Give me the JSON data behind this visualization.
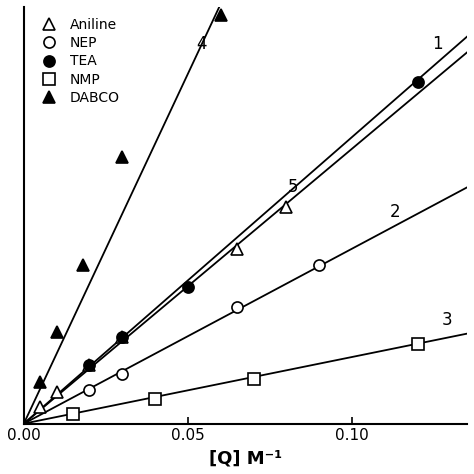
{
  "xlabel": "[Q] M⁻¹",
  "xlim": [
    0,
    0.135
  ],
  "ylim": [
    1.0,
    3.5
  ],
  "xticks": [
    0.0,
    0.05,
    0.1
  ],
  "xticklabels": [
    "0.00",
    "0.05",
    "0.10"
  ],
  "series": [
    {
      "label": "Aniline",
      "marker": "^",
      "filled": false,
      "line_num": "5",
      "x_data": [
        0.005,
        0.01,
        0.02,
        0.03,
        0.065,
        0.08
      ],
      "y_data": [
        1.1,
        1.19,
        1.35,
        1.52,
        2.05,
        2.3
      ],
      "slope": 16.5,
      "intercept": 1.0
    },
    {
      "label": "NEP",
      "marker": "o",
      "filled": false,
      "line_num": "2",
      "x_data": [
        0.02,
        0.03,
        0.065,
        0.09
      ],
      "y_data": [
        1.2,
        1.3,
        1.7,
        1.95
      ],
      "slope": 10.5,
      "intercept": 1.0
    },
    {
      "label": "TEA",
      "marker": "o",
      "filled": true,
      "line_num": "1",
      "x_data": [
        0.02,
        0.03,
        0.05,
        0.12
      ],
      "y_data": [
        1.35,
        1.52,
        1.82,
        3.05
      ],
      "slope": 17.2,
      "intercept": 1.0
    },
    {
      "label": "NMP",
      "marker": "s",
      "filled": false,
      "line_num": "3",
      "x_data": [
        0.015,
        0.04,
        0.07,
        0.12
      ],
      "y_data": [
        1.06,
        1.15,
        1.27,
        1.48
      ],
      "slope": 4.0,
      "intercept": 1.0
    },
    {
      "label": "DABCO",
      "marker": "^",
      "filled": true,
      "line_num": "4",
      "x_data": [
        0.005,
        0.01,
        0.018,
        0.03,
        0.06
      ],
      "y_data": [
        1.25,
        1.55,
        1.95,
        2.6,
        3.45
      ],
      "slope": 42.0,
      "intercept": 1.0
    }
  ],
  "line_label_positions": {
    "1": [
      0.126,
      3.28
    ],
    "2": [
      0.113,
      2.27
    ],
    "3": [
      0.129,
      1.62
    ],
    "4": [
      0.054,
      3.28
    ],
    "5": [
      0.082,
      2.42
    ]
  },
  "legend_loc": "upper left",
  "background_color": "#ffffff",
  "markersize": 8,
  "linewidth": 1.3
}
